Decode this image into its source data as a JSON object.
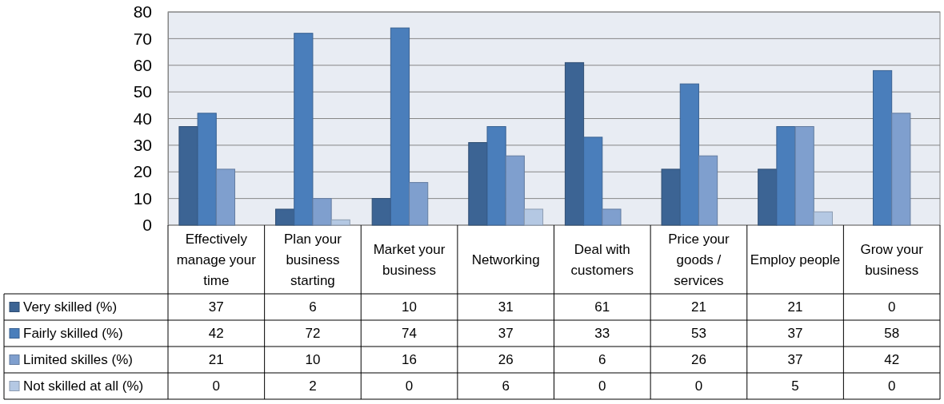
{
  "chart_data": {
    "type": "bar",
    "categories": [
      "Effectively manage your time",
      "Plan your business starting",
      "Market your business",
      "Networking",
      "Deal with customers",
      "Price your goods / services",
      "Employ people",
      "Grow your business"
    ],
    "series": [
      {
        "name": "Very skilled (%)",
        "color": "#3c6494",
        "values": [
          37,
          6,
          10,
          31,
          61,
          21,
          21,
          0
        ]
      },
      {
        "name": "Fairly skilled (%)",
        "color": "#4a7ebb",
        "values": [
          42,
          72,
          74,
          37,
          33,
          53,
          37,
          58
        ]
      },
      {
        "name": "Limited skilles (%)",
        "color": "#7f9fce",
        "values": [
          21,
          10,
          16,
          26,
          6,
          26,
          37,
          42
        ]
      },
      {
        "name": "Not skilled at all (%)",
        "color": "#b4c8e3",
        "values": [
          0,
          2,
          0,
          6,
          0,
          0,
          5,
          0
        ]
      }
    ],
    "ylim": [
      0,
      80
    ],
    "yticks": [
      0,
      10,
      20,
      30,
      40,
      50,
      60,
      70,
      80
    ],
    "grid": "y",
    "legend": "bottom left",
    "data_labels": true
  }
}
